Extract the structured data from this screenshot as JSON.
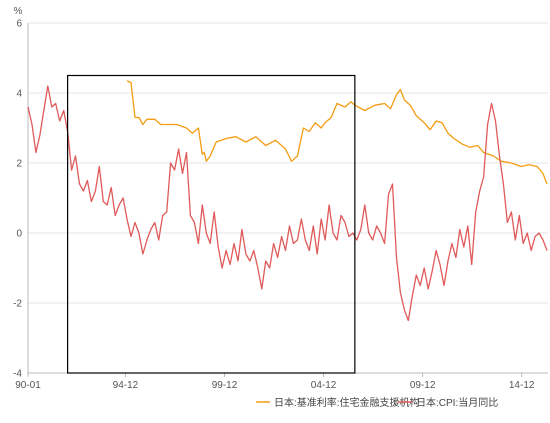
{
  "chart_data": {
    "type": "line",
    "unit_label": "%",
    "ylim": [
      -4,
      6
    ],
    "y_ticks": [
      "-4",
      "-2",
      "0",
      "2",
      "4",
      "6"
    ],
    "x_ticks": [
      {
        "label": "90-01",
        "x": 1990.0
      },
      {
        "label": "94-12",
        "x": 1994.92
      },
      {
        "label": "99-12",
        "x": 1999.92
      },
      {
        "label": "04-12",
        "x": 2004.92
      },
      {
        "label": "09-12",
        "x": 2009.92
      },
      {
        "label": "14-12",
        "x": 2014.92
      }
    ],
    "xlim": [
      1990.0,
      2016.25
    ],
    "grid": true,
    "legend_position": "bottom-right",
    "highlight_box": {
      "x0": 1992.0,
      "x1": 2006.5,
      "y0": -4,
      "y1": 4.5
    },
    "series": [
      {
        "name": "日本:基准利率:住宅金融支援机构",
        "color": "#F39C12",
        "points": [
          [
            1995.0,
            4.35
          ],
          [
            1995.2,
            4.3
          ],
          [
            1995.4,
            3.3
          ],
          [
            1995.6,
            3.3
          ],
          [
            1995.8,
            3.1
          ],
          [
            1996.0,
            3.25
          ],
          [
            1996.4,
            3.25
          ],
          [
            1996.7,
            3.1
          ],
          [
            1997.5,
            3.1
          ],
          [
            1998.0,
            3.0
          ],
          [
            1998.3,
            2.85
          ],
          [
            1998.6,
            3.0
          ],
          [
            1998.8,
            2.25
          ],
          [
            1998.9,
            2.3
          ],
          [
            1999.0,
            2.05
          ],
          [
            1999.2,
            2.2
          ],
          [
            1999.5,
            2.6
          ],
          [
            2000.0,
            2.7
          ],
          [
            2000.5,
            2.75
          ],
          [
            2001.0,
            2.6
          ],
          [
            2001.5,
            2.75
          ],
          [
            2002.0,
            2.5
          ],
          [
            2002.5,
            2.65
          ],
          [
            2003.0,
            2.4
          ],
          [
            2003.3,
            2.05
          ],
          [
            2003.6,
            2.2
          ],
          [
            2003.9,
            3.0
          ],
          [
            2004.2,
            2.9
          ],
          [
            2004.5,
            3.15
          ],
          [
            2004.8,
            3.0
          ],
          [
            2005.0,
            3.15
          ],
          [
            2005.3,
            3.3
          ],
          [
            2005.6,
            3.7
          ],
          [
            2006.0,
            3.6
          ],
          [
            2006.3,
            3.75
          ],
          [
            2006.5,
            3.65
          ],
          [
            2007.0,
            3.5
          ],
          [
            2007.5,
            3.65
          ],
          [
            2008.0,
            3.7
          ],
          [
            2008.3,
            3.55
          ],
          [
            2008.6,
            3.95
          ],
          [
            2008.8,
            4.1
          ],
          [
            2009.0,
            3.8
          ],
          [
            2009.3,
            3.65
          ],
          [
            2009.6,
            3.35
          ],
          [
            2010.0,
            3.15
          ],
          [
            2010.3,
            2.95
          ],
          [
            2010.6,
            3.2
          ],
          [
            2010.9,
            3.15
          ],
          [
            2011.2,
            2.85
          ],
          [
            2011.5,
            2.7
          ],
          [
            2011.9,
            2.55
          ],
          [
            2012.3,
            2.45
          ],
          [
            2012.7,
            2.5
          ],
          [
            2013.0,
            2.3
          ],
          [
            2013.5,
            2.2
          ],
          [
            2013.9,
            2.05
          ],
          [
            2014.4,
            2.0
          ],
          [
            2014.9,
            1.9
          ],
          [
            2015.3,
            1.95
          ],
          [
            2015.7,
            1.9
          ],
          [
            2016.0,
            1.7
          ],
          [
            2016.2,
            1.4
          ]
        ]
      },
      {
        "name": "日本:CPI:当月同比",
        "color": "#E05A5A",
        "points": [
          [
            1990.0,
            3.6
          ],
          [
            1990.2,
            3.1
          ],
          [
            1990.4,
            2.3
          ],
          [
            1990.6,
            2.8
          ],
          [
            1990.8,
            3.5
          ],
          [
            1991.0,
            4.2
          ],
          [
            1991.2,
            3.6
          ],
          [
            1991.4,
            3.7
          ],
          [
            1991.6,
            3.2
          ],
          [
            1991.8,
            3.5
          ],
          [
            1992.0,
            2.9
          ],
          [
            1992.2,
            1.8
          ],
          [
            1992.4,
            2.2
          ],
          [
            1992.6,
            1.4
          ],
          [
            1992.8,
            1.2
          ],
          [
            1993.0,
            1.5
          ],
          [
            1993.2,
            0.9
          ],
          [
            1993.4,
            1.2
          ],
          [
            1993.6,
            1.9
          ],
          [
            1993.8,
            0.9
          ],
          [
            1994.0,
            0.8
          ],
          [
            1994.2,
            1.3
          ],
          [
            1994.4,
            0.5
          ],
          [
            1994.6,
            0.8
          ],
          [
            1994.8,
            1.0
          ],
          [
            1995.0,
            0.4
          ],
          [
            1995.2,
            -0.1
          ],
          [
            1995.4,
            0.3
          ],
          [
            1995.6,
            0.0
          ],
          [
            1995.8,
            -0.6
          ],
          [
            1996.0,
            -0.2
          ],
          [
            1996.2,
            0.1
          ],
          [
            1996.4,
            0.3
          ],
          [
            1996.6,
            -0.2
          ],
          [
            1996.8,
            0.5
          ],
          [
            1997.0,
            0.6
          ],
          [
            1997.2,
            2.0
          ],
          [
            1997.4,
            1.8
          ],
          [
            1997.6,
            2.4
          ],
          [
            1997.8,
            1.7
          ],
          [
            1998.0,
            2.3
          ],
          [
            1998.2,
            0.5
          ],
          [
            1998.4,
            0.3
          ],
          [
            1998.6,
            -0.3
          ],
          [
            1998.8,
            0.8
          ],
          [
            1999.0,
            0.0
          ],
          [
            1999.2,
            -0.3
          ],
          [
            1999.4,
            0.6
          ],
          [
            1999.6,
            -0.4
          ],
          [
            1999.8,
            -1.0
          ],
          [
            2000.0,
            -0.5
          ],
          [
            2000.2,
            -0.9
          ],
          [
            2000.4,
            -0.3
          ],
          [
            2000.6,
            -0.8
          ],
          [
            2000.8,
            0.1
          ],
          [
            2001.0,
            -0.6
          ],
          [
            2001.2,
            -0.8
          ],
          [
            2001.4,
            -0.5
          ],
          [
            2001.6,
            -1.0
          ],
          [
            2001.8,
            -1.6
          ],
          [
            2002.0,
            -0.8
          ],
          [
            2002.2,
            -1.0
          ],
          [
            2002.4,
            -0.3
          ],
          [
            2002.6,
            -0.7
          ],
          [
            2002.8,
            -0.1
          ],
          [
            2003.0,
            -0.5
          ],
          [
            2003.2,
            0.2
          ],
          [
            2003.4,
            -0.3
          ],
          [
            2003.6,
            -0.2
          ],
          [
            2003.8,
            0.4
          ],
          [
            2004.0,
            -0.2
          ],
          [
            2004.2,
            -0.5
          ],
          [
            2004.4,
            0.2
          ],
          [
            2004.6,
            -0.6
          ],
          [
            2004.8,
            0.4
          ],
          [
            2005.0,
            -0.2
          ],
          [
            2005.2,
            0.8
          ],
          [
            2005.4,
            0.0
          ],
          [
            2005.6,
            -0.2
          ],
          [
            2005.8,
            0.5
          ],
          [
            2006.0,
            0.3
          ],
          [
            2006.2,
            -0.1
          ],
          [
            2006.4,
            0.0
          ],
          [
            2006.6,
            -0.2
          ],
          [
            2006.8,
            0.1
          ],
          [
            2007.0,
            0.8
          ],
          [
            2007.2,
            0.0
          ],
          [
            2007.4,
            -0.2
          ],
          [
            2007.6,
            0.2
          ],
          [
            2007.8,
            0.0
          ],
          [
            2008.0,
            -0.3
          ],
          [
            2008.2,
            1.1
          ],
          [
            2008.4,
            1.4
          ],
          [
            2008.6,
            -0.7
          ],
          [
            2008.8,
            -1.7
          ],
          [
            2009.0,
            -2.2
          ],
          [
            2009.2,
            -2.5
          ],
          [
            2009.4,
            -1.8
          ],
          [
            2009.6,
            -1.2
          ],
          [
            2009.8,
            -1.5
          ],
          [
            2010.0,
            -1.0
          ],
          [
            2010.2,
            -1.6
          ],
          [
            2010.4,
            -1.1
          ],
          [
            2010.6,
            -0.5
          ],
          [
            2010.8,
            -0.9
          ],
          [
            2011.0,
            -1.5
          ],
          [
            2011.2,
            -0.8
          ],
          [
            2011.4,
            -0.3
          ],
          [
            2011.6,
            -0.7
          ],
          [
            2011.8,
            0.1
          ],
          [
            2012.0,
            -0.4
          ],
          [
            2012.2,
            0.2
          ],
          [
            2012.4,
            -0.9
          ],
          [
            2012.6,
            0.6
          ],
          [
            2012.8,
            1.2
          ],
          [
            2013.0,
            1.6
          ],
          [
            2013.2,
            3.1
          ],
          [
            2013.4,
            3.7
          ],
          [
            2013.6,
            3.2
          ],
          [
            2013.8,
            2.2
          ],
          [
            2014.0,
            1.4
          ],
          [
            2014.2,
            0.3
          ],
          [
            2014.4,
            0.6
          ],
          [
            2014.6,
            -0.2
          ],
          [
            2014.8,
            0.5
          ],
          [
            2015.0,
            -0.3
          ],
          [
            2015.2,
            0.0
          ],
          [
            2015.4,
            -0.5
          ],
          [
            2015.6,
            -0.1
          ],
          [
            2015.8,
            0.0
          ],
          [
            2016.0,
            -0.2
          ],
          [
            2016.2,
            -0.5
          ]
        ]
      }
    ]
  }
}
